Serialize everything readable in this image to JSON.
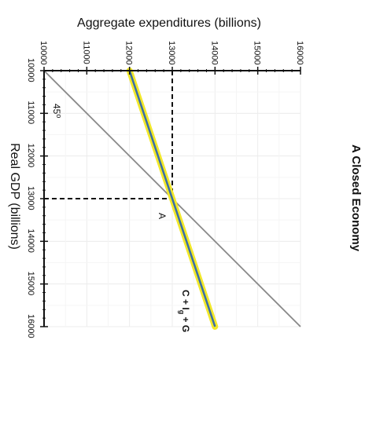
{
  "chart_data": {
    "type": "line",
    "title": "A Closed Economy",
    "xlabel": "Real GDP (billions)",
    "ylabel": "Aggregate expenditures (billions)",
    "xlim": [
      10000,
      16000
    ],
    "ylim": [
      10000,
      16000
    ],
    "x_ticks": [
      "10000",
      "11000",
      "12000",
      "13000",
      "14000",
      "15000",
      "16000"
    ],
    "y_ticks": [
      "10000",
      "11000",
      "12000",
      "13000",
      "14000",
      "15000",
      "16000"
    ],
    "grid": true,
    "series": [
      {
        "name": "45°",
        "color": "#888888",
        "points": [
          [
            10000,
            10000
          ],
          [
            16000,
            16000
          ]
        ]
      },
      {
        "name": "C + I + G",
        "color": "#3a6ea5",
        "highlight": "#f2e82a",
        "points": [
          [
            10000,
            12000
          ],
          [
            16000,
            14000
          ]
        ]
      }
    ],
    "guides": {
      "x": 13000,
      "y": 13000
    },
    "annotations": {
      "line45_label": "45",
      "line45_label_sup": "o",
      "equilibrium_label": "A",
      "ae_label_main": "C + I",
      "ae_label_sub": "g",
      "ae_label_tail": " + G"
    }
  }
}
